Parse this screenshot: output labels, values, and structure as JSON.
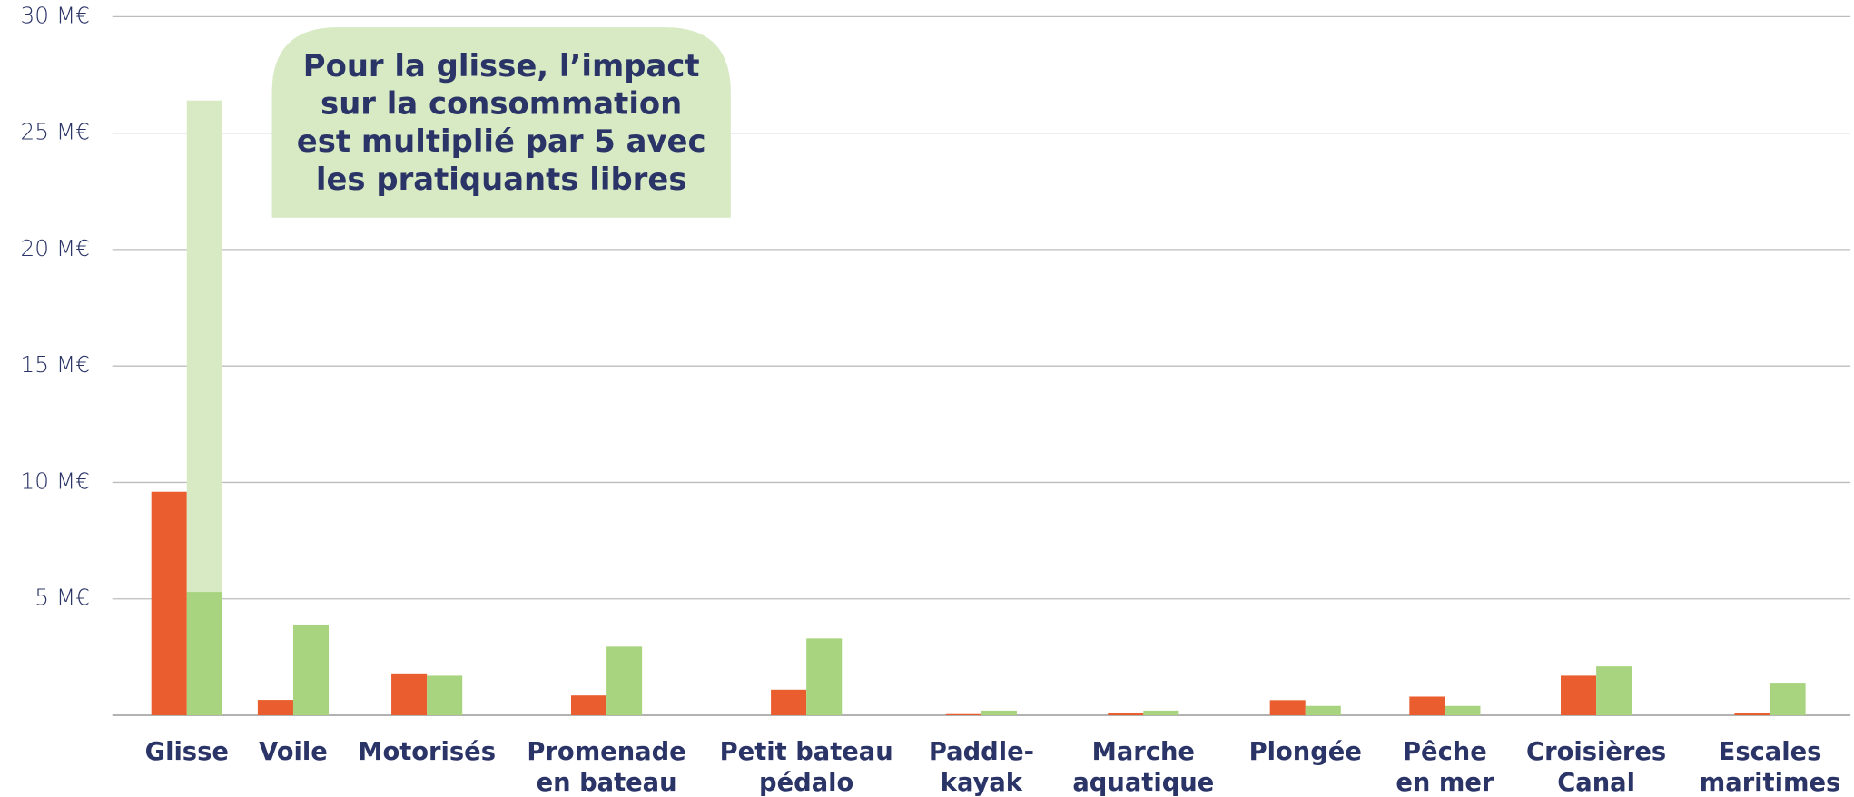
{
  "chart_data": {
    "type": "bar",
    "categories": [
      [
        "Glisse"
      ],
      [
        "Voile"
      ],
      [
        "Motorisés"
      ],
      [
        "Promenade",
        "en bateau"
      ],
      [
        "Petit bateau",
        "pédalo"
      ],
      [
        "Paddle-",
        "kayak"
      ],
      [
        "Marche",
        "aquatique"
      ],
      [
        "Plongée"
      ],
      [
        "Pêche",
        "en mer"
      ],
      [
        "Croisières",
        "Canal"
      ],
      [
        "Escales",
        "maritimes"
      ]
    ],
    "series": [
      {
        "color": "#e95d2e",
        "values": [
          9.6,
          0.66,
          1.8,
          0.85,
          1.1,
          0.05,
          0.1,
          0.65,
          0.8,
          1.7,
          0.1
        ]
      },
      {
        "color": "#a8d47f",
        "values": [
          5.3,
          3.9,
          1.7,
          2.95,
          3.3,
          0.2,
          0.2,
          0.4,
          0.4,
          2.1,
          1.4
        ]
      },
      {
        "color": "#d7eac4",
        "stacked_on": 1,
        "values": [
          21.1,
          null,
          null,
          null,
          null,
          null,
          null,
          null,
          null,
          null,
          null
        ]
      }
    ],
    "ylim": [
      0,
      30
    ],
    "yticks": [
      {
        "value": 5,
        "label": "5 M€"
      },
      {
        "value": 10,
        "label": "10 M€"
      },
      {
        "value": 15,
        "label": "15 M€"
      },
      {
        "value": 20,
        "label": "20 M€"
      },
      {
        "value": 25,
        "label": "25 M€"
      },
      {
        "value": 30,
        "label": "30 M€"
      }
    ],
    "grid": true,
    "annotation": [
      "Pour la glisse, l’impact",
      "sur la consommation",
      "est multiplié par 5 avec",
      "les pratiquants libres"
    ],
    "annotation_color": "#d7eac4"
  }
}
